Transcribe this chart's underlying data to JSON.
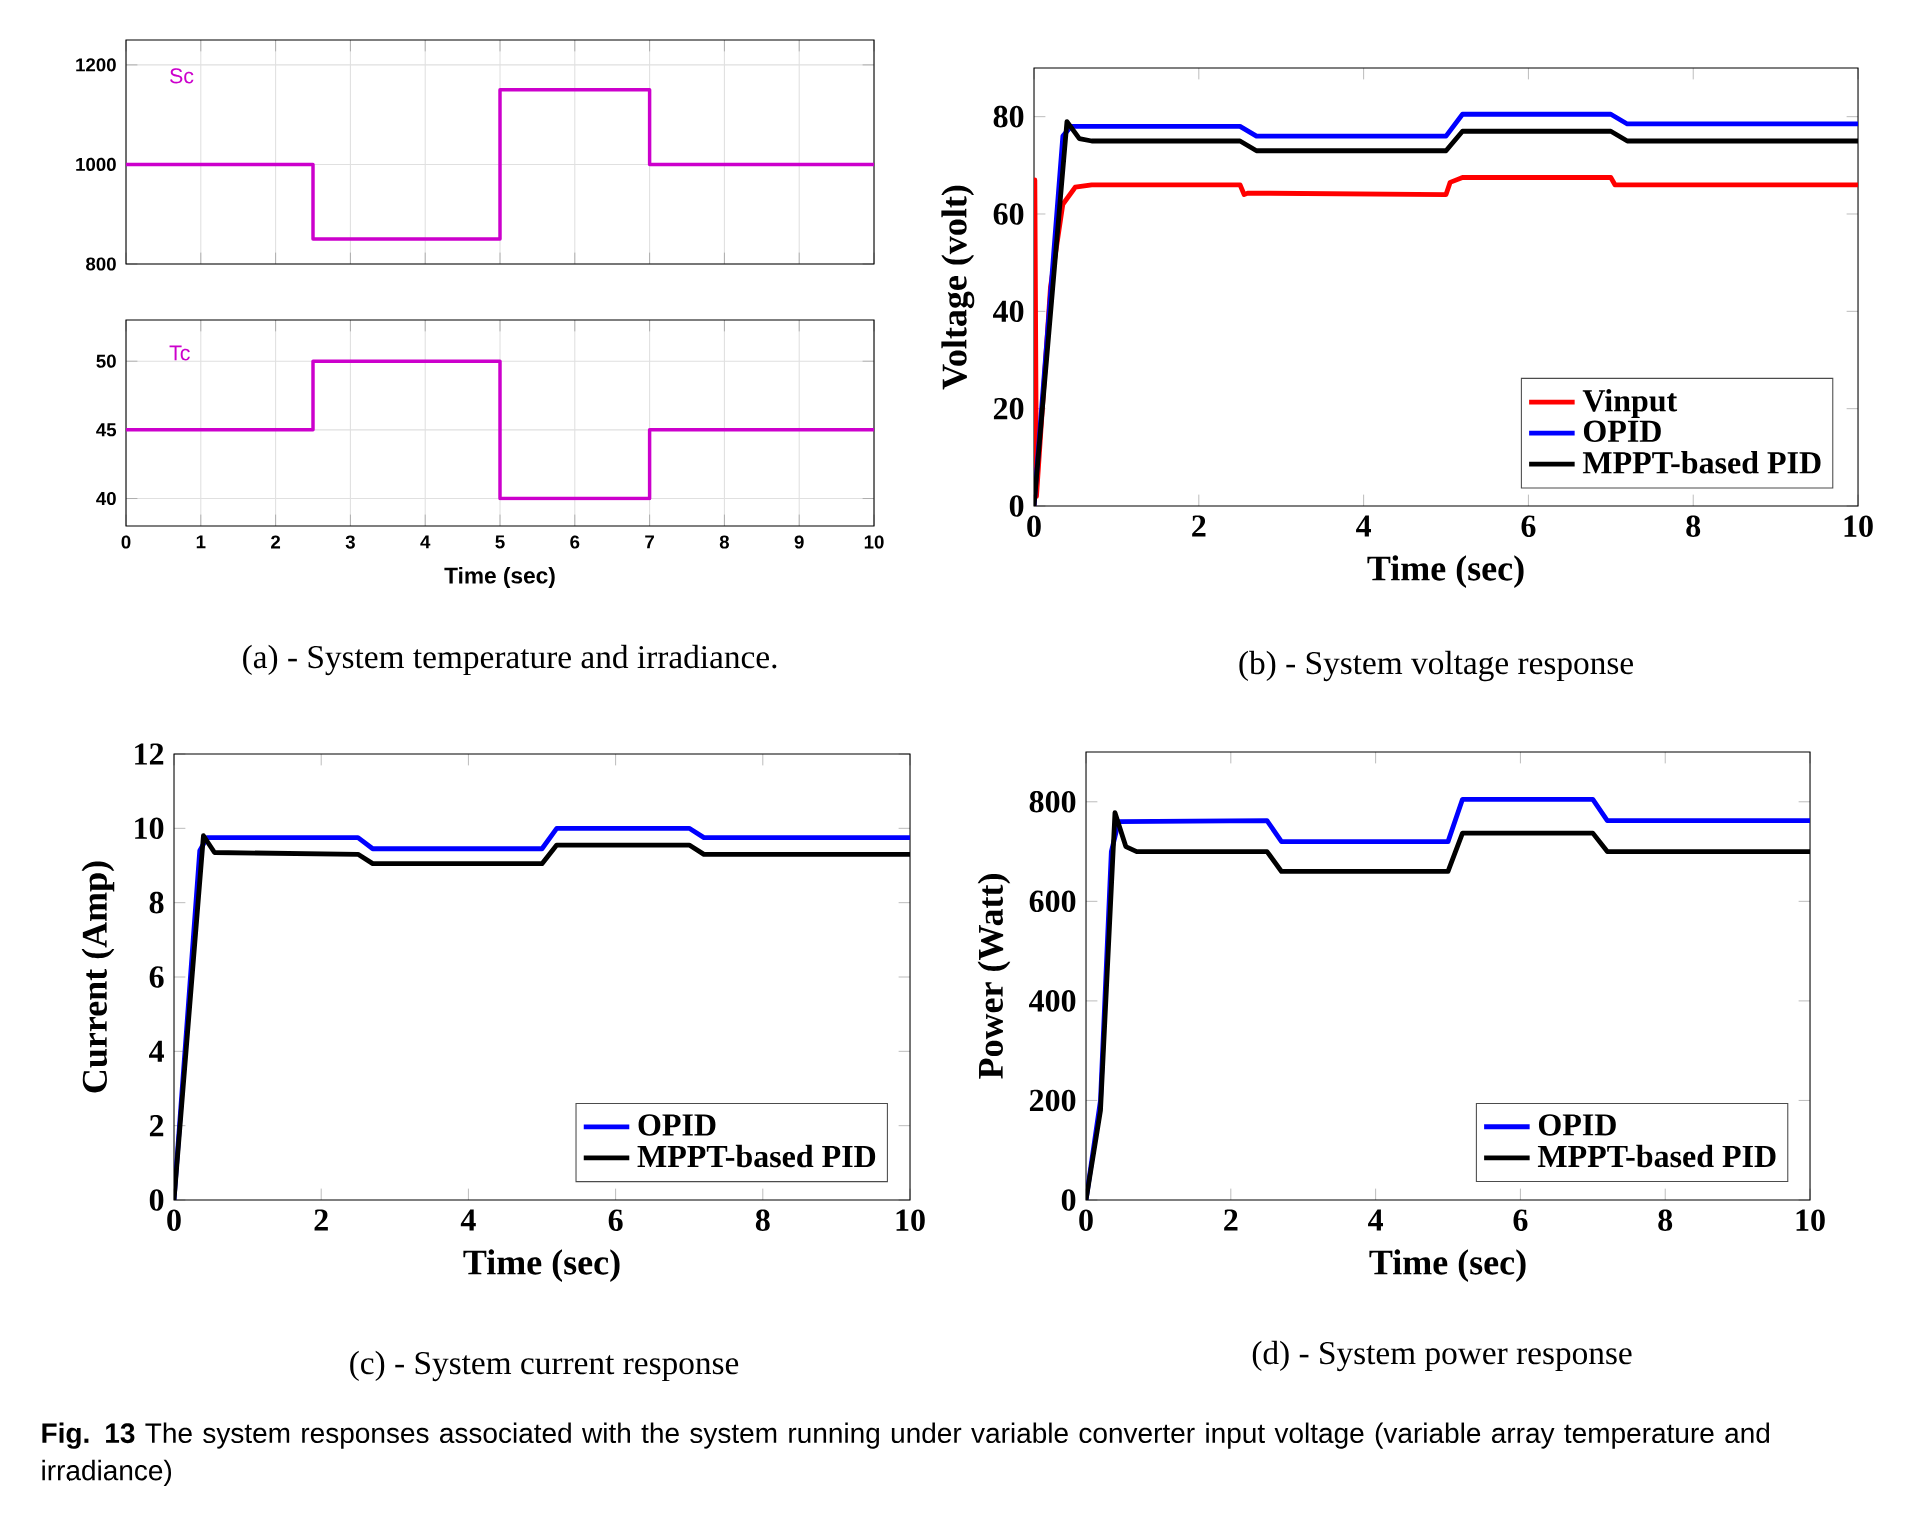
{
  "chart_data": [
    {
      "type": "step",
      "xlim": [
        0,
        10
      ],
      "ylim": [
        800,
        1250
      ],
      "xticks": [
        0,
        1,
        2,
        3,
        4,
        5,
        6,
        7,
        8,
        9,
        10
      ],
      "yticks": [
        800,
        1000,
        1200
      ],
      "grid": true,
      "tick_labels": "y",
      "series": [
        {
          "name": "Sc",
          "color": "#cc00cc",
          "x": [
            0,
            2.5,
            5,
            7,
            10
          ],
          "values": [
            1000,
            850,
            1150,
            1000,
            1000
          ]
        }
      ]
    },
    {
      "type": "step",
      "xlim": [
        0,
        10
      ],
      "ylim": [
        38,
        53
      ],
      "xticks": [
        0,
        1,
        2,
        3,
        4,
        5,
        6,
        7,
        8,
        9,
        10
      ],
      "yticks": [
        40,
        45,
        50
      ],
      "grid": true,
      "xlabel": "Time (sec)",
      "annotations": [
        "(a) - System temperature and irradiance."
      ],
      "series": [
        {
          "name": "Tc",
          "color": "#cc00cc",
          "x": [
            0,
            2.5,
            5,
            7,
            10
          ],
          "values": [
            45,
            50,
            40,
            45,
            45
          ]
        }
      ]
    },
    {
      "type": "line",
      "xlim": [
        0,
        10
      ],
      "ylim": [
        0,
        90
      ],
      "xticks": [
        0,
        2,
        4,
        6,
        8,
        10
      ],
      "yticks": [
        0,
        20,
        40,
        60,
        80
      ],
      "xlabel": "Time (sec)",
      "ylabel": "Voltage (volt)",
      "legend": "bottom right",
      "annotations": [
        "(b) - System voltage response"
      ],
      "series": [
        {
          "name": "Vinput",
          "color": "#ff0000",
          "x": [
            0,
            0.01,
            0.03,
            0.2,
            0.35,
            0.5,
            0.7,
            2.5,
            2.55,
            2.6,
            5,
            5.05,
            5.2,
            7,
            7.05,
            10
          ],
          "values": [
            0,
            67,
            2,
            45,
            62,
            65.5,
            66,
            66,
            64,
            64.3,
            64,
            66.5,
            67.5,
            67.5,
            66,
            66
          ]
        },
        {
          "name": "OPID",
          "color": "#0000ff",
          "x": [
            0,
            0.35,
            0.45,
            2.5,
            2.7,
            5,
            5.2,
            7,
            7.2,
            10
          ],
          "values": [
            0,
            76,
            78,
            78,
            76,
            76,
            80.5,
            80.5,
            78.5,
            78.5
          ]
        },
        {
          "name": "MPPT-based PID",
          "color": "#000000",
          "x": [
            0,
            0.4,
            0.55,
            0.7,
            2.5,
            2.7,
            5,
            5.2,
            7,
            7.2,
            10
          ],
          "values": [
            0,
            79,
            75.5,
            75,
            75,
            73,
            73,
            77,
            77,
            75,
            75
          ]
        }
      ]
    },
    {
      "type": "line",
      "xlim": [
        0,
        10
      ],
      "ylim": [
        0,
        12
      ],
      "xticks": [
        0,
        2,
        4,
        6,
        8,
        10
      ],
      "yticks": [
        0,
        2,
        4,
        6,
        8,
        10,
        12
      ],
      "xlabel": "Time (sec)",
      "ylabel": "Current (Amp)",
      "legend": "bottom right",
      "annotations": [
        "(c) - System current response"
      ],
      "series": [
        {
          "name": "OPID",
          "color": "#0000ff",
          "x": [
            0,
            0.35,
            0.45,
            2.5,
            2.7,
            5,
            5.2,
            7,
            7.2,
            10
          ],
          "values": [
            0,
            9.4,
            9.75,
            9.75,
            9.45,
            9.45,
            10,
            10,
            9.75,
            9.75
          ]
        },
        {
          "name": "MPPT-based PID",
          "color": "#000000",
          "x": [
            0,
            0.4,
            0.55,
            2.5,
            2.7,
            5,
            5.2,
            7,
            7.2,
            10
          ],
          "values": [
            0,
            9.8,
            9.35,
            9.3,
            9.05,
            9.05,
            9.55,
            9.55,
            9.3,
            9.3
          ]
        }
      ]
    },
    {
      "type": "line",
      "xlim": [
        0,
        10
      ],
      "ylim": [
        0,
        900
      ],
      "xticks": [
        0,
        2,
        4,
        6,
        8,
        10
      ],
      "yticks": [
        0,
        200,
        400,
        600,
        800
      ],
      "xlabel": "Time (sec)",
      "ylabel": "Power (Watt)",
      "legend": "bottom right",
      "annotations": [
        "(d) - System power response",
        "**Fig. 13**  The system responses associated with the system running under variable converter input voltage (variable array temperature and irradiance)"
      ],
      "series": [
        {
          "name": "OPID",
          "color": "#0000ff",
          "x": [
            0,
            0.2,
            0.35,
            0.45,
            2.5,
            2.7,
            5,
            5.2,
            7,
            7.2,
            10
          ],
          "values": [
            0,
            200,
            700,
            760,
            762,
            720,
            720,
            805,
            805,
            762,
            762
          ]
        },
        {
          "name": "MPPT-based PID",
          "color": "#000000",
          "x": [
            0,
            0.2,
            0.4,
            0.55,
            0.7,
            2.5,
            2.7,
            5,
            5.2,
            7,
            7.2,
            10
          ],
          "values": [
            0,
            180,
            778,
            710,
            700,
            700,
            660,
            660,
            737,
            737,
            700,
            700
          ]
        }
      ]
    }
  ]
}
